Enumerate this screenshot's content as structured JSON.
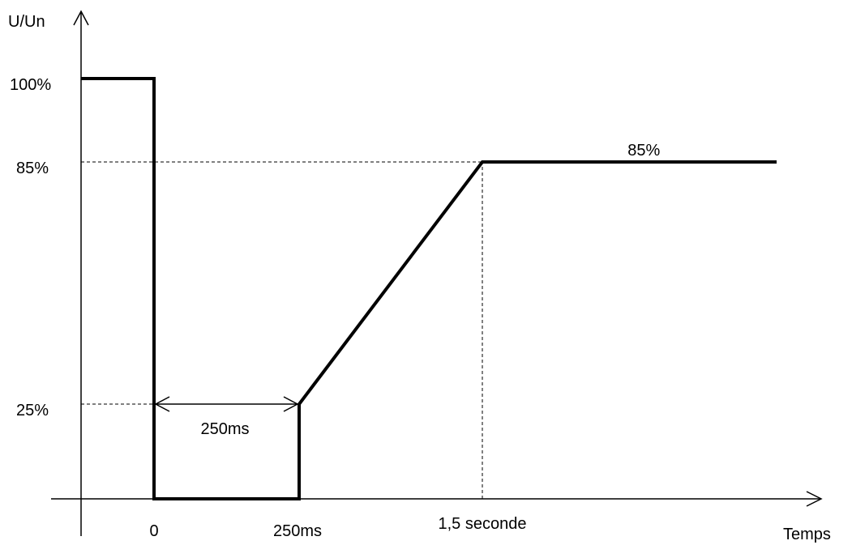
{
  "chart_data": {
    "type": "line",
    "title": "",
    "ylabel": "U/Un",
    "xlabel": "Temps",
    "y_unit": "%",
    "x_unit": "ms",
    "grid": false,
    "legend": "none",
    "x_ticks": [
      {
        "value": 0,
        "label": "0"
      },
      {
        "value": 250,
        "label": "250ms"
      },
      {
        "value": 1500,
        "label": "1,5 seconde"
      }
    ],
    "y_ticks": [
      {
        "value": 100,
        "label": "100%"
      },
      {
        "value": 85,
        "label": "85%"
      },
      {
        "value": 25,
        "label": "25%"
      }
    ],
    "series": [
      {
        "x": [
          -120,
          0,
          0,
          250,
          250,
          1500,
          2560
        ],
        "y": [
          100,
          100,
          0,
          0,
          25,
          85,
          85
        ]
      }
    ],
    "reference_lines": [
      {
        "from": [
          -120,
          85
        ],
        "to": [
          1500,
          85
        ]
      },
      {
        "from": [
          1500,
          0
        ],
        "to": [
          1500,
          85
        ]
      },
      {
        "from": [
          -120,
          25
        ],
        "to": [
          250,
          25
        ]
      }
    ],
    "annotations": [
      {
        "id": "duration",
        "label": "250ms",
        "from_x": 0,
        "to_x": 250,
        "y": 25
      },
      {
        "id": "plateau",
        "label": "85%",
        "x": 2000,
        "y": 85
      }
    ],
    "colors": {
      "line": "#000000",
      "axis": "#000000",
      "background": "#ffffff"
    }
  }
}
